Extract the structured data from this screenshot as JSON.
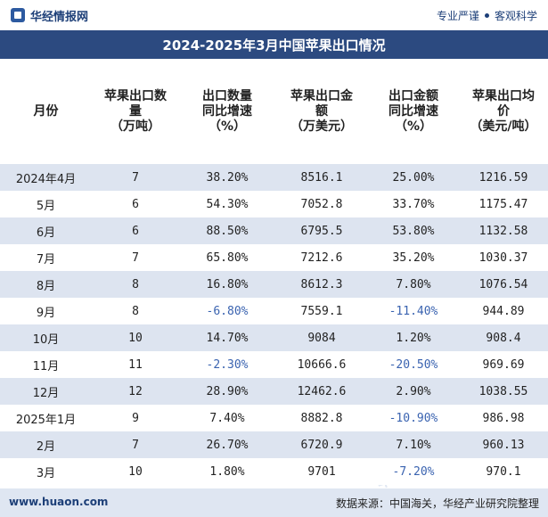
{
  "header": {
    "brand": "华经情报网",
    "tag1": "专业严谨",
    "tag2": "客观科学"
  },
  "title": "2024-2025年3月中国苹果出口情况",
  "columns": [
    [
      "月份"
    ],
    [
      "苹果出口数",
      "量",
      "（万吨）"
    ],
    [
      "出口数量",
      "同比增速",
      "（%）"
    ],
    [
      "苹果出口金",
      "额",
      "（万美元）"
    ],
    [
      "出口金额",
      "同比增速",
      "（%）"
    ],
    [
      "苹果出口均",
      "价",
      "（美元/吨）"
    ]
  ],
  "rows": [
    {
      "month": "2024年4月",
      "qty": "7",
      "qty_yoy": "38.20%",
      "amount": "8516.1",
      "amount_yoy": "25.00%",
      "price": "1216.59"
    },
    {
      "month": "5月",
      "qty": "6",
      "qty_yoy": "54.30%",
      "amount": "7052.8",
      "amount_yoy": "33.70%",
      "price": "1175.47"
    },
    {
      "month": "6月",
      "qty": "6",
      "qty_yoy": "88.50%",
      "amount": "6795.5",
      "amount_yoy": "53.80%",
      "price": "1132.58"
    },
    {
      "month": "7月",
      "qty": "7",
      "qty_yoy": "65.80%",
      "amount": "7212.6",
      "amount_yoy": "35.20%",
      "price": "1030.37"
    },
    {
      "month": "8月",
      "qty": "8",
      "qty_yoy": "16.80%",
      "amount": "8612.3",
      "amount_yoy": "7.80%",
      "price": "1076.54"
    },
    {
      "month": "9月",
      "qty": "8",
      "qty_yoy": "-6.80%",
      "amount": "7559.1",
      "amount_yoy": "-11.40%",
      "price": "944.89"
    },
    {
      "month": "10月",
      "qty": "10",
      "qty_yoy": "14.70%",
      "amount": "9084",
      "amount_yoy": "1.20%",
      "price": "908.4"
    },
    {
      "month": "11月",
      "qty": "11",
      "qty_yoy": "-2.30%",
      "amount": "10666.6",
      "amount_yoy": "-20.50%",
      "price": "969.69"
    },
    {
      "month": "12月",
      "qty": "12",
      "qty_yoy": "28.90%",
      "amount": "12462.6",
      "amount_yoy": "2.90%",
      "price": "1038.55"
    },
    {
      "month": "2025年1月",
      "qty": "9",
      "qty_yoy": "7.40%",
      "amount": "8882.8",
      "amount_yoy": "-10.90%",
      "price": "986.98"
    },
    {
      "month": "2月",
      "qty": "7",
      "qty_yoy": "26.70%",
      "amount": "6720.9",
      "amount_yoy": "7.10%",
      "price": "960.13"
    },
    {
      "month": "3月",
      "qty": "10",
      "qty_yoy": "1.80%",
      "amount": "9701",
      "amount_yoy": "-7.20%",
      "price": "970.1"
    }
  ],
  "colors": {
    "title_bg": "#2c4a80",
    "stripe": "#dde4f0",
    "negative": "#3a63b0"
  },
  "footer": {
    "url": "www.huaon.com",
    "source": "数据来源：中国海关，华经产业研究院整理"
  }
}
